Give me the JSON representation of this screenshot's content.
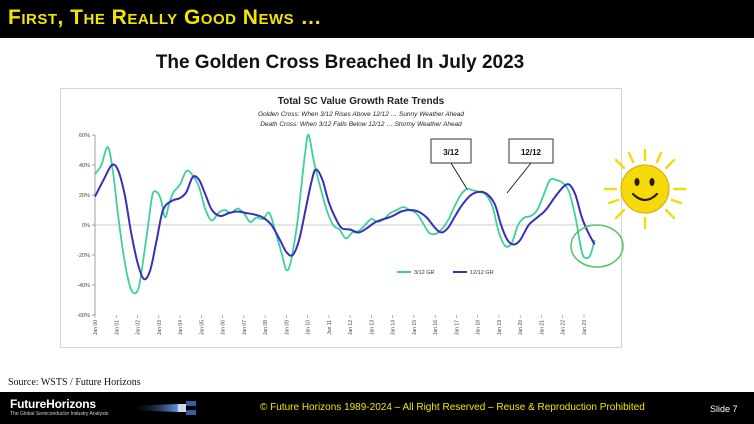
{
  "slide": {
    "header": "First, The Really Good News …",
    "subtitle": "The Golden Cross Breached In July 2023",
    "source": "Source: WSTS / Future Horizons",
    "footer": {
      "brand": "FutureHorizons",
      "tagline": "The Global Semiconductor Industry Analysts",
      "copyright": "© Future Horizons 1989-2024 – All Right Reserved – Reuse & Reproduction Prohibited",
      "slide_number": "Slide 7"
    },
    "colors": {
      "header_bg": "#000000",
      "header_text": "#f2e600",
      "series_3_12": "#3dd19a",
      "series_12_12": "#3a2fb8",
      "highlight_circle": "#5cc46a",
      "sun": "#f5d90a"
    },
    "decorations": [
      "sun-icon",
      "satellite-icon"
    ]
  },
  "chart_data": {
    "type": "line",
    "title": "Total SC Value Growth Rate Trends",
    "subtitle_lines": [
      "Golden Cross: When 3/12 Rises Above 12/12 … Sunny Weather Ahead",
      "Death Cross: When 3/12 Falls Below 12/12 … Stormy Weather Ahead"
    ],
    "xlabel": "",
    "ylabel": "",
    "ylim": [
      -60,
      60
    ],
    "yticks": [
      "60%",
      "40%",
      "20%",
      "0%",
      "-20%",
      "-40%",
      "-60%"
    ],
    "xticks": [
      "Jan 00",
      "Jan 01",
      "Jan 02",
      "Jan 03",
      "Jan 04",
      "Jan 05",
      "Jan 06",
      "Jan 07",
      "Jan 08",
      "Jan 09",
      "Jan 10",
      "Jan 11",
      "Jan 12",
      "Jan 13",
      "Jan 14",
      "Jan 15",
      "Jan 16",
      "Jan 17",
      "Jan 18",
      "Jan 19",
      "Jan 20",
      "Jan 21",
      "Jan 22",
      "Jan 23"
    ],
    "legend": [
      "3/12 GR",
      "12/12 GR"
    ],
    "legend_position": "bottom-right",
    "annotations": [
      "3/12",
      "12/12"
    ],
    "series": [
      {
        "name": "3/12 GR",
        "points": [
          [
            2000.0,
            34
          ],
          [
            2000.3,
            40
          ],
          [
            2000.6,
            52
          ],
          [
            2000.85,
            35
          ],
          [
            2001.1,
            5
          ],
          [
            2001.4,
            -25
          ],
          [
            2001.7,
            -43
          ],
          [
            2002.0,
            -44
          ],
          [
            2002.2,
            -30
          ],
          [
            2002.5,
            0
          ],
          [
            2002.7,
            20
          ],
          [
            2002.9,
            22
          ],
          [
            2003.1,
            17
          ],
          [
            2003.3,
            5
          ],
          [
            2003.5,
            15
          ],
          [
            2003.7,
            22
          ],
          [
            2004.0,
            27
          ],
          [
            2004.3,
            36
          ],
          [
            2004.6,
            33
          ],
          [
            2004.9,
            25
          ],
          [
            2005.2,
            10
          ],
          [
            2005.5,
            3
          ],
          [
            2005.8,
            8
          ],
          [
            2006.1,
            10
          ],
          [
            2006.4,
            8
          ],
          [
            2006.7,
            11
          ],
          [
            2007.0,
            8
          ],
          [
            2007.3,
            2
          ],
          [
            2007.6,
            5
          ],
          [
            2007.9,
            4
          ],
          [
            2008.2,
            8
          ],
          [
            2008.5,
            -5
          ],
          [
            2008.8,
            -20
          ],
          [
            2009.0,
            -30
          ],
          [
            2009.2,
            -25
          ],
          [
            2009.5,
            0
          ],
          [
            2009.7,
            25
          ],
          [
            2009.9,
            50
          ],
          [
            2010.05,
            60
          ],
          [
            2010.3,
            42
          ],
          [
            2010.6,
            25
          ],
          [
            2010.9,
            10
          ],
          [
            2011.2,
            0
          ],
          [
            2011.5,
            -3
          ],
          [
            2011.8,
            -9
          ],
          [
            2012.1,
            -5
          ],
          [
            2012.4,
            -4
          ],
          [
            2012.7,
            0
          ],
          [
            2013.0,
            4
          ],
          [
            2013.3,
            2
          ],
          [
            2013.6,
            4
          ],
          [
            2013.9,
            8
          ],
          [
            2014.2,
            10
          ],
          [
            2014.5,
            12
          ],
          [
            2014.8,
            10
          ],
          [
            2015.1,
            8
          ],
          [
            2015.4,
            2
          ],
          [
            2015.7,
            -5
          ],
          [
            2016.0,
            -6
          ],
          [
            2016.3,
            -3
          ],
          [
            2016.6,
            3
          ],
          [
            2016.9,
            12
          ],
          [
            2017.2,
            20
          ],
          [
            2017.5,
            24
          ],
          [
            2017.8,
            23
          ],
          [
            2018.1,
            22
          ],
          [
            2018.4,
            20
          ],
          [
            2018.7,
            12
          ],
          [
            2019.0,
            -5
          ],
          [
            2019.3,
            -14
          ],
          [
            2019.6,
            -12
          ],
          [
            2019.9,
            0
          ],
          [
            2020.2,
            5
          ],
          [
            2020.5,
            6
          ],
          [
            2020.8,
            10
          ],
          [
            2021.1,
            20
          ],
          [
            2021.4,
            30
          ],
          [
            2021.7,
            30
          ],
          [
            2022.0,
            28
          ],
          [
            2022.3,
            22
          ],
          [
            2022.6,
            5
          ],
          [
            2022.9,
            -18
          ],
          [
            2023.1,
            -22
          ],
          [
            2023.3,
            -20
          ],
          [
            2023.5,
            -10
          ]
        ]
      },
      {
        "name": "12/12 GR",
        "points": [
          [
            2000.0,
            19
          ],
          [
            2000.4,
            30
          ],
          [
            2000.8,
            40
          ],
          [
            2001.1,
            36
          ],
          [
            2001.4,
            20
          ],
          [
            2001.7,
            -5
          ],
          [
            2002.0,
            -25
          ],
          [
            2002.3,
            -36
          ],
          [
            2002.6,
            -30
          ],
          [
            2002.9,
            -10
          ],
          [
            2003.2,
            10
          ],
          [
            2003.6,
            16
          ],
          [
            2004.0,
            18
          ],
          [
            2004.3,
            22
          ],
          [
            2004.6,
            32
          ],
          [
            2004.9,
            30
          ],
          [
            2005.2,
            20
          ],
          [
            2005.5,
            10
          ],
          [
            2005.9,
            6
          ],
          [
            2006.3,
            8
          ],
          [
            2006.7,
            9
          ],
          [
            2007.1,
            8
          ],
          [
            2007.5,
            7
          ],
          [
            2007.9,
            5
          ],
          [
            2008.3,
            0
          ],
          [
            2008.7,
            -10
          ],
          [
            2009.0,
            -18
          ],
          [
            2009.3,
            -20
          ],
          [
            2009.6,
            -10
          ],
          [
            2009.9,
            10
          ],
          [
            2010.2,
            30
          ],
          [
            2010.4,
            37
          ],
          [
            2010.7,
            30
          ],
          [
            2011.0,
            15
          ],
          [
            2011.3,
            5
          ],
          [
            2011.6,
            -2
          ],
          [
            2012.0,
            -3
          ],
          [
            2012.4,
            -5
          ],
          [
            2012.8,
            -2
          ],
          [
            2013.2,
            2
          ],
          [
            2013.6,
            4
          ],
          [
            2014.0,
            6
          ],
          [
            2014.4,
            9
          ],
          [
            2014.8,
            10
          ],
          [
            2015.2,
            9
          ],
          [
            2015.6,
            5
          ],
          [
            2016.0,
            -2
          ],
          [
            2016.3,
            -5
          ],
          [
            2016.6,
            -2
          ],
          [
            2016.9,
            5
          ],
          [
            2017.2,
            12
          ],
          [
            2017.6,
            19
          ],
          [
            2018.0,
            22
          ],
          [
            2018.4,
            21
          ],
          [
            2018.8,
            14
          ],
          [
            2019.1,
            0
          ],
          [
            2019.4,
            -10
          ],
          [
            2019.7,
            -13
          ],
          [
            2020.0,
            -10
          ],
          [
            2020.4,
            0
          ],
          [
            2020.8,
            5
          ],
          [
            2021.2,
            10
          ],
          [
            2021.6,
            18
          ],
          [
            2022.0,
            25
          ],
          [
            2022.3,
            27
          ],
          [
            2022.6,
            20
          ],
          [
            2022.9,
            5
          ],
          [
            2023.2,
            -5
          ],
          [
            2023.5,
            -13
          ]
        ]
      }
    ]
  }
}
